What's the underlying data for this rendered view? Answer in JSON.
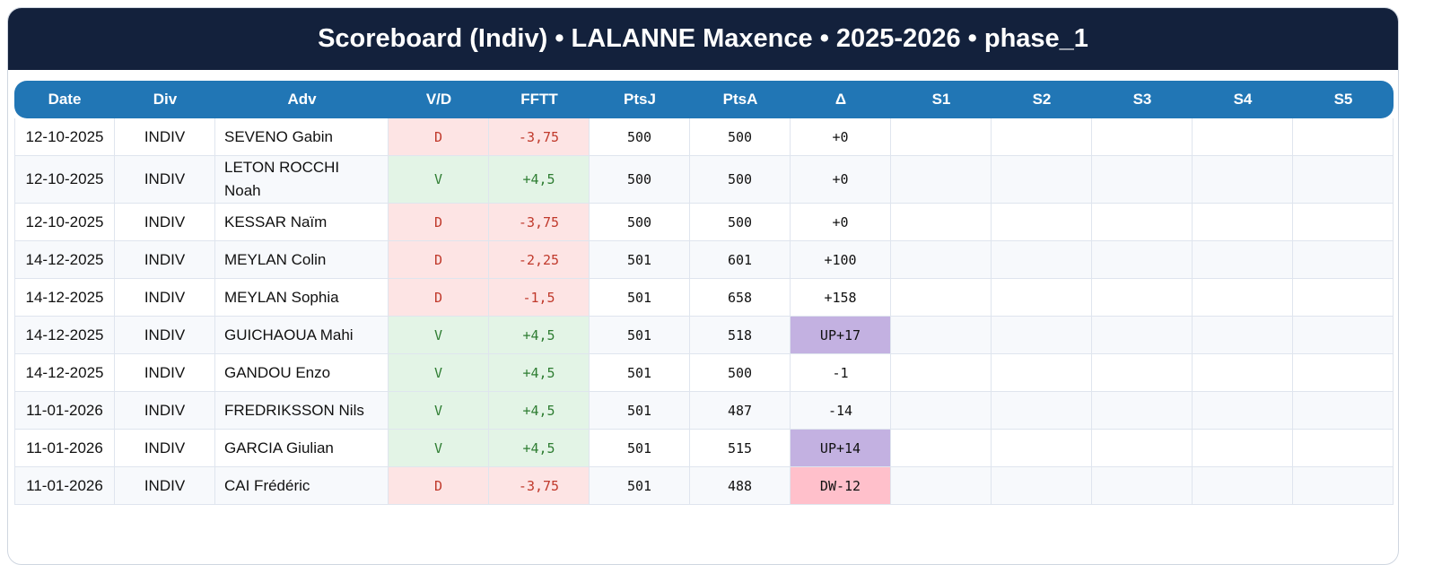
{
  "title": "Scoreboard (Indiv) • LALANNE Maxence • 2025-2026 • phase_1",
  "table": {
    "headers": [
      "Date",
      "Div",
      "Adv",
      "V/D",
      "FFTT",
      "PtsJ",
      "PtsA",
      "Δ",
      "S1",
      "S2",
      "S3",
      "S4",
      "S5"
    ],
    "result_styles": {
      "V": {
        "background": "#e3f4e6",
        "color": "#2e7d32"
      },
      "D": {
        "background": "#fde4e4",
        "color": "#c0392b"
      }
    },
    "rows": [
      {
        "date": "12-10-2025",
        "div": "INDIV",
        "adv": "SEVENO Gabin",
        "result": "D",
        "fftt": "-3,75",
        "ptsj": "500",
        "ptsa": "500",
        "delta": "+0"
      },
      {
        "date": "12-10-2025",
        "div": "INDIV",
        "adv": "LETON ROCCHI Noah",
        "result": "V",
        "fftt": "+4,5",
        "ptsj": "500",
        "ptsa": "500",
        "delta": "+0"
      },
      {
        "date": "12-10-2025",
        "div": "INDIV",
        "adv": "KESSAR Naïm",
        "result": "D",
        "fftt": "-3,75",
        "ptsj": "500",
        "ptsa": "500",
        "delta": "+0"
      },
      {
        "date": "14-12-2025",
        "div": "INDIV",
        "adv": "MEYLAN Colin",
        "result": "D",
        "fftt": "-2,25",
        "ptsj": "501",
        "ptsa": "601",
        "delta": "+100"
      },
      {
        "date": "14-12-2025",
        "div": "INDIV",
        "adv": "MEYLAN Sophia",
        "result": "D",
        "fftt": "-1,5",
        "ptsj": "501",
        "ptsa": "658",
        "delta": "+158"
      },
      {
        "date": "14-12-2025",
        "div": "INDIV",
        "adv": "GUICHAOUA Mahi",
        "result": "V",
        "fftt": "+4,5",
        "ptsj": "501",
        "ptsa": "518",
        "delta": "UP+17",
        "delta_color": "#c3b1e1"
      },
      {
        "date": "14-12-2025",
        "div": "INDIV",
        "adv": "GANDOU Enzo",
        "result": "V",
        "fftt": "+4,5",
        "ptsj": "501",
        "ptsa": "500",
        "delta": "-1"
      },
      {
        "date": "11-01-2026",
        "div": "INDIV",
        "adv": "FREDRIKSSON Nils",
        "result": "V",
        "fftt": "+4,5",
        "ptsj": "501",
        "ptsa": "487",
        "delta": "-14"
      },
      {
        "date": "11-01-2026",
        "div": "INDIV",
        "adv": "GARCIA Giulian",
        "result": "V",
        "fftt": "+4,5",
        "ptsj": "501",
        "ptsa": "515",
        "delta": "UP+14",
        "delta_color": "#c3b1e1"
      },
      {
        "date": "11-01-2026",
        "div": "INDIV",
        "adv": "CAI Frédéric",
        "result": "D",
        "fftt": "-3,75",
        "ptsj": "501",
        "ptsa": "488",
        "delta": "DW-12",
        "delta_color": "#ffc0cb"
      }
    ]
  }
}
